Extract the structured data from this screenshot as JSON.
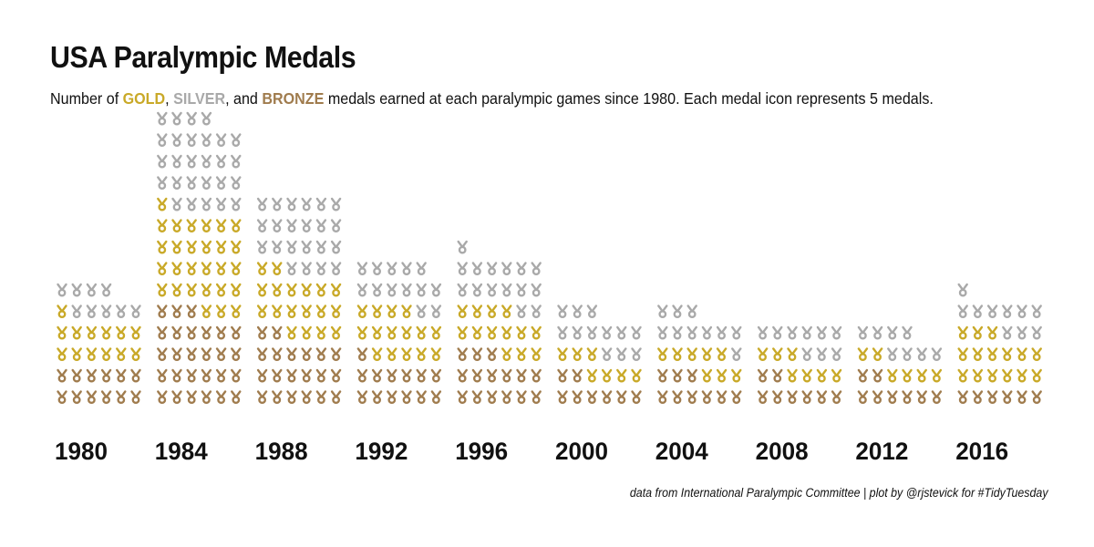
{
  "title": "USA Paralympic Medals",
  "subtitle": {
    "prefix": "Number of ",
    "gold": "GOLD",
    "sep1": ", ",
    "silver": "SILVER",
    "sep2": ", and ",
    "bronze": "BRONZE",
    "suffix": " medals earned at each paralympic games since 1980. Each medal icon represents 5 medals."
  },
  "caption": "data from International Paralympic Committee | plot by @rjstevick for #TidyTuesday",
  "colors": {
    "gold": "#C9A928",
    "silver": "#A9A9A9",
    "bronze": "#A07C4E"
  },
  "chart_data": {
    "type": "pictogram",
    "unit": 5,
    "icons_per_row": 6,
    "categories": [
      "1980",
      "1984",
      "1988",
      "1992",
      "1996",
      "2000",
      "2004",
      "2008",
      "2012",
      "2016"
    ],
    "series": [
      {
        "name": "BRONZE",
        "icons": [
          12,
          27,
          20,
          13,
          15,
          8,
          9,
          8,
          8,
          6
        ]
      },
      {
        "name": "GOLD",
        "icons": [
          13,
          28,
          18,
          15,
          13,
          7,
          8,
          7,
          6,
          15
        ]
      },
      {
        "name": "SILVER",
        "icons": [
          9,
          27,
          22,
          13,
          15,
          12,
          10,
          9,
          8,
          10
        ]
      }
    ],
    "legend": "inline in subtitle"
  }
}
